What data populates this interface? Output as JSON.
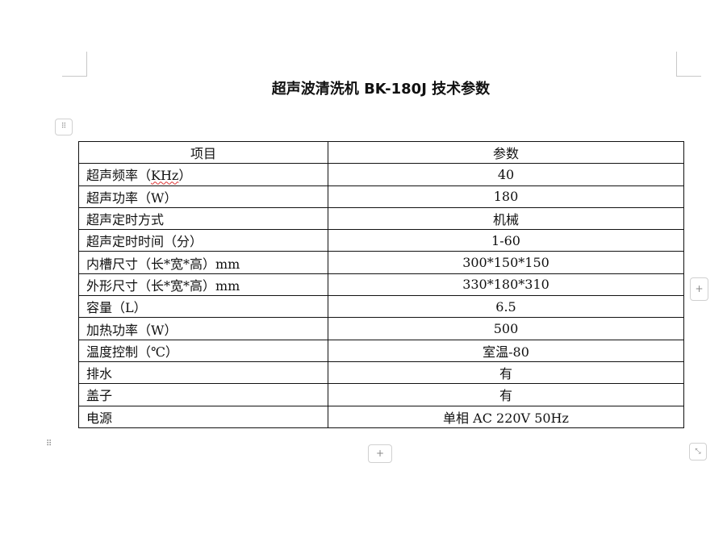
{
  "document": {
    "title": "超声波清洗机 BK-180J 技术参数",
    "table": {
      "headers": [
        "项目",
        "参数"
      ],
      "rows": [
        {
          "item_prefix": "超声频率（",
          "item_unit": "KHz",
          "item_suffix": "）",
          "value": "40"
        },
        {
          "item": "超声功率（W）",
          "value": "180"
        },
        {
          "item": "超声定时方式",
          "value": "机械"
        },
        {
          "item": "超声定时时间（分）",
          "value": "1-60"
        },
        {
          "item": "内槽尺寸（长*宽*高）mm",
          "value": "300*150*150"
        },
        {
          "item": "外形尺寸（长*宽*高）mm",
          "value": "330*180*310"
        },
        {
          "item": "容量（L）",
          "value": "6.5"
        },
        {
          "item": "加热功率（W）",
          "value": "500"
        },
        {
          "item": "温度控制（℃）",
          "value": "室温-80"
        },
        {
          "item": "排水",
          "value": "有"
        },
        {
          "item": "盖子",
          "value": "有"
        },
        {
          "item": "电源",
          "value": "单相 AC  220V  50Hz"
        }
      ]
    }
  },
  "controls": {
    "add_symbol": "+",
    "move_icon": "move-handle-icon",
    "resize_icon": "resize-icon"
  }
}
